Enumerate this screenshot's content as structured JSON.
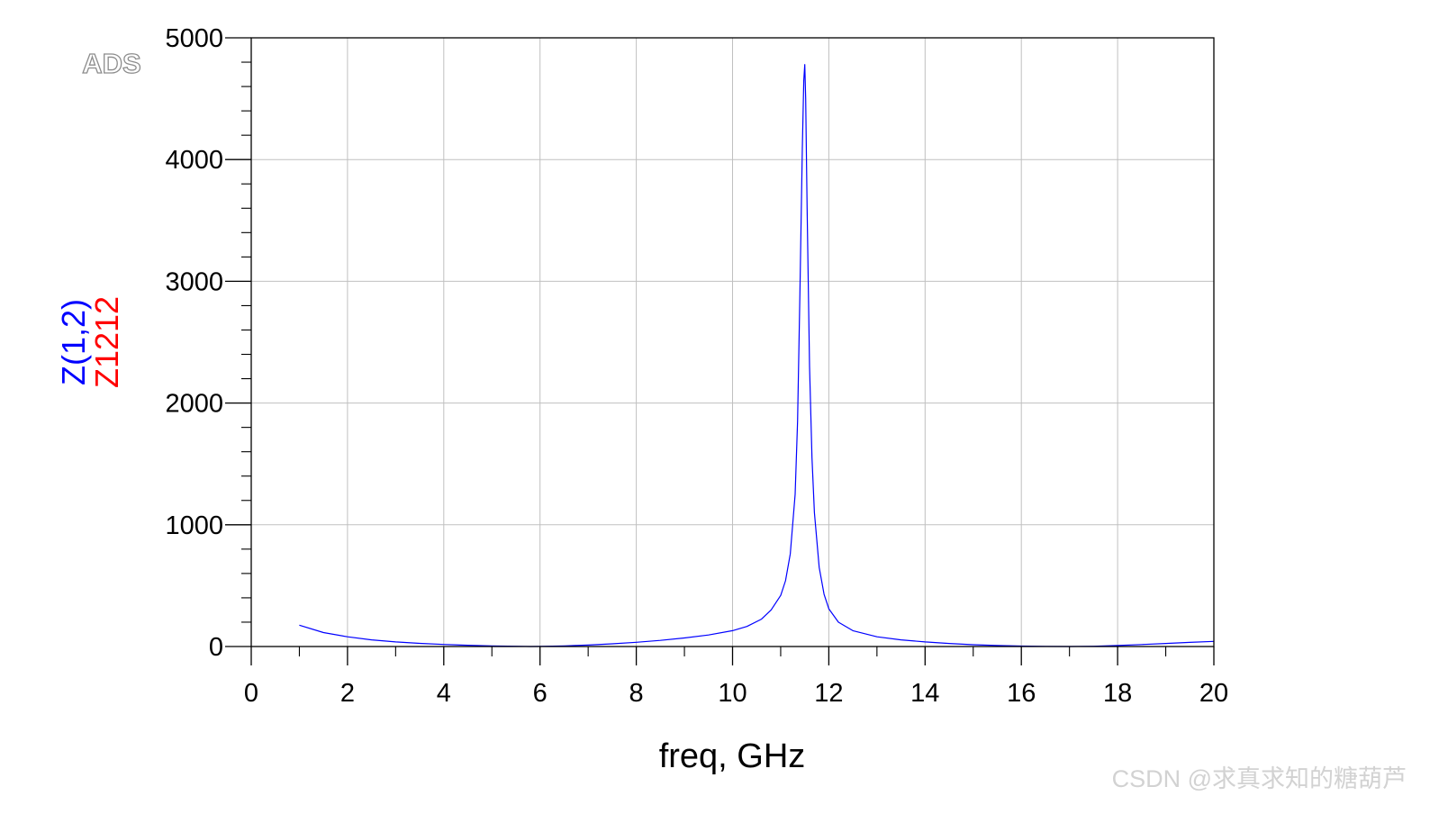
{
  "logo": "ADS",
  "watermark": "CSDN @求真求知的糖葫芦",
  "colors": {
    "series_1": "#0000ff",
    "series_2": "#ff0000",
    "grid": "#c0c0c0",
    "axis": "#000000"
  },
  "chart_data": {
    "type": "line",
    "title": "",
    "xlabel": "freq, GHz",
    "ylabel_series": [
      "Z(1,2)",
      "Z1212"
    ],
    "xlim": [
      0,
      20
    ],
    "ylim": [
      0,
      5000
    ],
    "xticks": [
      0,
      2,
      4,
      6,
      8,
      10,
      12,
      14,
      16,
      18,
      20
    ],
    "yticks": [
      0,
      1000,
      2000,
      3000,
      4000,
      5000
    ],
    "grid": true,
    "series": [
      {
        "name": "Z(1,2)",
        "color": "#0000ff",
        "x": [
          1.0,
          1.5,
          2.0,
          2.5,
          3.0,
          3.5,
          4.0,
          4.5,
          5.0,
          5.5,
          5.8,
          6.0,
          6.5,
          7.0,
          7.5,
          8.0,
          8.5,
          9.0,
          9.5,
          10.0,
          10.3,
          10.6,
          10.8,
          11.0,
          11.1,
          11.2,
          11.3,
          11.35,
          11.4,
          11.45,
          11.48,
          11.5,
          11.52,
          11.55,
          11.6,
          11.65,
          11.7,
          11.8,
          11.9,
          12.0,
          12.2,
          12.5,
          13.0,
          13.5,
          14.0,
          14.5,
          15.0,
          15.5,
          16.0,
          16.5,
          17.0,
          17.5,
          18.0,
          18.5,
          19.0,
          19.5,
          20.0
        ],
        "y": [
          175,
          115,
          80,
          55,
          38,
          26,
          17,
          10,
          5,
          2,
          0,
          1,
          5,
          12,
          22,
          35,
          50,
          70,
          95,
          130,
          165,
          225,
          300,
          420,
          540,
          760,
          1250,
          1850,
          2900,
          4100,
          4650,
          4780,
          4500,
          3600,
          2300,
          1550,
          1100,
          650,
          430,
          310,
          200,
          130,
          80,
          55,
          38,
          25,
          15,
          8,
          4,
          1,
          0,
          2,
          8,
          16,
          25,
          34,
          42
        ]
      }
    ]
  }
}
